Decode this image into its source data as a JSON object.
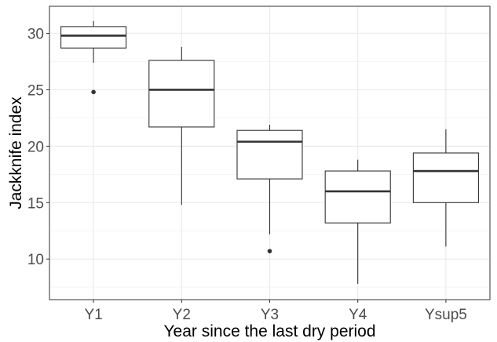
{
  "chart_data": {
    "type": "boxplot",
    "title": "",
    "xlabel": "Year since the last dry period",
    "ylabel": "Jackknife index",
    "ylim": [
      6.4,
      32.4
    ],
    "yticks": [
      10,
      15,
      20,
      25,
      30
    ],
    "grid": true,
    "legend": "none",
    "categories": [
      "Y1",
      "Y2",
      "Y3",
      "Y4",
      "Ysup5"
    ],
    "boxes": [
      {
        "category": "Y1",
        "whisker_low": 27.4,
        "q1": 28.7,
        "median": 29.8,
        "q3": 30.6,
        "whisker_high": 31.1,
        "outliers": [
          24.8
        ]
      },
      {
        "category": "Y2",
        "whisker_low": 14.8,
        "q1": 21.7,
        "median": 25.0,
        "q3": 27.6,
        "whisker_high": 28.8,
        "outliers": []
      },
      {
        "category": "Y3",
        "whisker_low": 12.2,
        "q1": 17.1,
        "median": 20.4,
        "q3": 21.4,
        "whisker_high": 21.9,
        "outliers": [
          10.7
        ]
      },
      {
        "category": "Y4",
        "whisker_low": 7.8,
        "q1": 13.2,
        "median": 16.0,
        "q3": 17.8,
        "whisker_high": 18.8,
        "outliers": []
      },
      {
        "category": "Ysup5",
        "whisker_low": 11.1,
        "q1": 15.0,
        "median": 17.8,
        "q3": 19.4,
        "whisker_high": 21.5,
        "outliers": []
      }
    ],
    "colors": {
      "box_line": "#333333",
      "box_fill": "#ffffff",
      "grid_major": "#ebebeb",
      "grid_minor": "#f5f5f5",
      "panel_border": "#333333"
    }
  }
}
